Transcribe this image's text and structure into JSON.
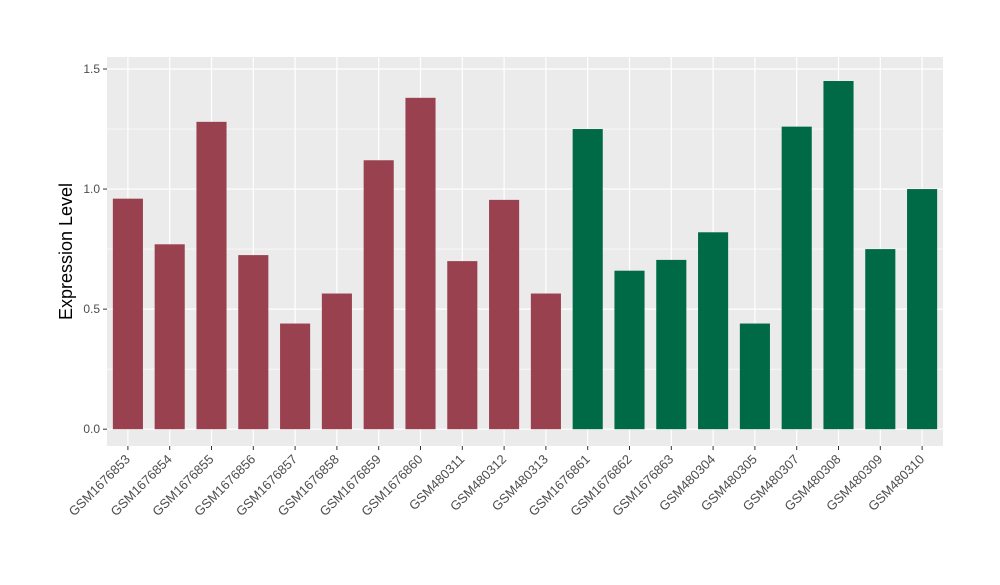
{
  "chart_data": {
    "type": "bar",
    "title": "",
    "xlabel": "",
    "ylabel": "Expression Level",
    "ylim": [
      -0.07,
      1.55
    ],
    "yticks": [
      0.0,
      0.5,
      1.0,
      1.5
    ],
    "ytick_labels": [
      "0.0",
      "0.5",
      "1.0",
      "1.5"
    ],
    "grid": true,
    "legend": "none",
    "panel_background": "#EBEBEB",
    "grid_color": "#FFFFFF",
    "categories": [
      "GSM1676853",
      "GSM1676854",
      "GSM1676855",
      "GSM1676856",
      "GSM1676857",
      "GSM1676858",
      "GSM1676859",
      "GSM1676860",
      "GSM480311",
      "GSM480312",
      "GSM480313",
      "GSM1676861",
      "GSM1676862",
      "GSM1676863",
      "GSM480304",
      "GSM480305",
      "GSM480307",
      "GSM480308",
      "GSM480309",
      "GSM480310"
    ],
    "values": [
      0.96,
      0.77,
      1.28,
      0.725,
      0.44,
      0.565,
      1.12,
      1.38,
      0.7,
      0.955,
      0.565,
      1.25,
      0.66,
      0.705,
      0.82,
      0.44,
      1.26,
      1.45,
      0.75,
      1.0
    ],
    "colors": [
      "#9A4150",
      "#9A4150",
      "#9A4150",
      "#9A4150",
      "#9A4150",
      "#9A4150",
      "#9A4150",
      "#9A4150",
      "#9A4150",
      "#9A4150",
      "#9A4150",
      "#006945",
      "#006945",
      "#006945",
      "#006945",
      "#006945",
      "#006945",
      "#006945",
      "#006945",
      "#006945"
    ]
  }
}
